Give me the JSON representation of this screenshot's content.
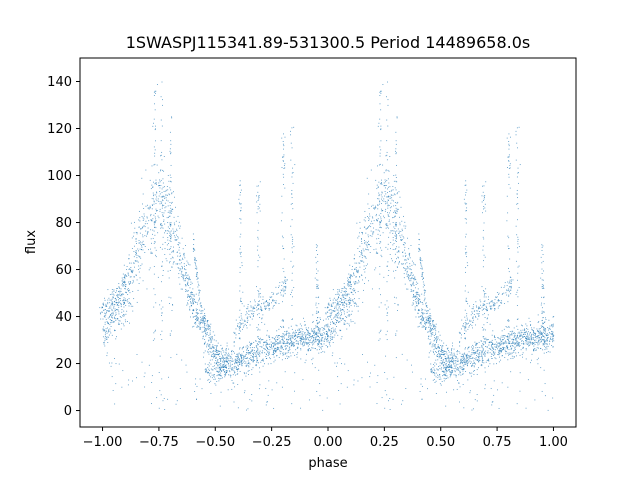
{
  "chart_data": {
    "type": "scatter",
    "title": "1SWASPJ115341.89-531300.5 Period 14489658.0s",
    "xlabel": "phase",
    "ylabel": "flux",
    "xlim": [
      -1.1,
      1.1
    ],
    "ylim": [
      -7,
      150
    ],
    "grid": false,
    "legend": "none",
    "point_color": "#1f77b4",
    "x_ticks": [
      {
        "value": -1.0,
        "label": "−1.00"
      },
      {
        "value": -0.75,
        "label": "−0.75"
      },
      {
        "value": -0.5,
        "label": "−0.50"
      },
      {
        "value": -0.25,
        "label": "−0.25"
      },
      {
        "value": 0.0,
        "label": "0.00"
      },
      {
        "value": 0.25,
        "label": "0.25"
      },
      {
        "value": 0.5,
        "label": "0.50"
      },
      {
        "value": 0.75,
        "label": "0.75"
      },
      {
        "value": 1.0,
        "label": "1.00"
      }
    ],
    "y_ticks": [
      {
        "value": 0,
        "label": "0"
      },
      {
        "value": 20,
        "label": "20"
      },
      {
        "value": 40,
        "label": "40"
      },
      {
        "value": 60,
        "label": "60"
      },
      {
        "value": 80,
        "label": "80"
      },
      {
        "value": 100,
        "label": "100"
      },
      {
        "value": 120,
        "label": "120"
      },
      {
        "value": 140,
        "label": "140"
      }
    ],
    "light_curve": {
      "phase": [
        0.0,
        0.02,
        0.04,
        0.06,
        0.08,
        0.1,
        0.12,
        0.14,
        0.16,
        0.18,
        0.2,
        0.22,
        0.24,
        0.26,
        0.28,
        0.3,
        0.32,
        0.34,
        0.36,
        0.38,
        0.4,
        0.42,
        0.44,
        0.46,
        0.48,
        0.5,
        0.52,
        0.54,
        0.56,
        0.58,
        0.6,
        0.62,
        0.64,
        0.66,
        0.68,
        0.7,
        0.72,
        0.74,
        0.76,
        0.78,
        0.8,
        0.82,
        0.84,
        0.86,
        0.88,
        0.9,
        0.92,
        0.94,
        0.96,
        0.98,
        1.0
      ],
      "flux": [
        33,
        36,
        40,
        43,
        46,
        50,
        56,
        63,
        70,
        76,
        80,
        84,
        86,
        87,
        84,
        79,
        73,
        66,
        59,
        52,
        45,
        40,
        36,
        32,
        28,
        25,
        22,
        21,
        20,
        20,
        21,
        22,
        23,
        24,
        25,
        26,
        27,
        27,
        28,
        28,
        29,
        29,
        30,
        30,
        31,
        31,
        31,
        32,
        32,
        32,
        33
      ],
      "scatter_spread": [
        6,
        7,
        8,
        9,
        10,
        11,
        13,
        15,
        17,
        18,
        19,
        19,
        19,
        19,
        18,
        16,
        14,
        12,
        10,
        9,
        8,
        7,
        7,
        7,
        7,
        6,
        6,
        6,
        6,
        6,
        6,
        6,
        6,
        6,
        6,
        6,
        6,
        6,
        6,
        6,
        6,
        6,
        6,
        6,
        6,
        6,
        6,
        6,
        6,
        6,
        6
      ]
    },
    "secondary_tracks": [
      {
        "phase": [
          -0.02,
          0.02,
          0.06,
          0.1
        ],
        "flux": [
          40,
          46,
          50,
          56
        ]
      },
      {
        "phase": [
          0.4,
          0.44,
          0.48
        ],
        "flux": [
          72,
          40,
          34
        ]
      },
      {
        "phase": [
          0.45,
          0.5,
          0.55
        ],
        "flux": [
          18,
          15,
          20
        ]
      },
      {
        "phase": [
          0.58,
          0.62,
          0.66,
          0.7
        ],
        "flux": [
          34,
          38,
          42,
          46
        ]
      },
      {
        "phase": [
          0.7,
          0.74,
          0.78,
          0.82
        ],
        "flux": [
          42,
          46,
          50,
          54
        ]
      }
    ],
    "spikes": [
      {
        "phase": 0.23,
        "flux_max": 143
      },
      {
        "phase": 0.26,
        "flux_max": 140
      },
      {
        "phase": 0.3,
        "flux_max": 128
      },
      {
        "phase": 0.61,
        "flux_max": 100
      },
      {
        "phase": 0.69,
        "flux_max": 98
      },
      {
        "phase": 0.8,
        "flux_max": 118
      },
      {
        "phase": 0.84,
        "flux_max": 122
      },
      {
        "phase": 0.95,
        "flux_max": 72
      }
    ]
  }
}
